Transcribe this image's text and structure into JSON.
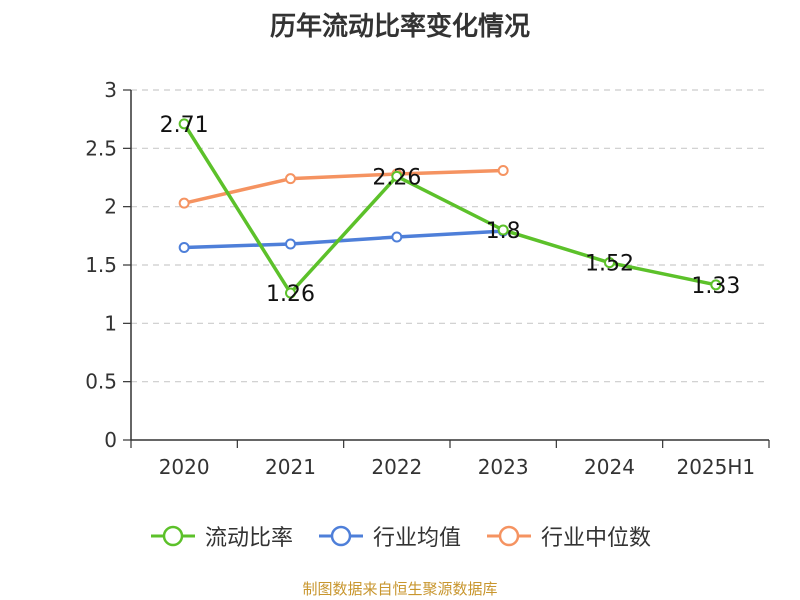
{
  "chart_data": {
    "type": "line",
    "title": "历年流动比率变化情况",
    "categories": [
      "2020",
      "2021",
      "2022",
      "2023",
      "2024",
      "2025H1"
    ],
    "ylim": [
      0,
      3
    ],
    "yticks": [
      "0",
      "0.5",
      "1",
      "1.5",
      "2",
      "2.5",
      "3"
    ],
    "grid": true,
    "legend_position": "bottom",
    "series": [
      {
        "name": "流动比率",
        "color": "#5cc12a",
        "values": [
          2.71,
          1.26,
          2.26,
          1.8,
          1.52,
          1.33
        ],
        "labels": [
          "2.71",
          "1.26",
          "2.26",
          "1.8",
          "1.52",
          "1.33"
        ],
        "show_labels": true
      },
      {
        "name": "行业均值",
        "color": "#4e7fd9",
        "values": [
          1.65,
          1.68,
          1.74,
          1.79,
          null,
          null
        ],
        "show_labels": false
      },
      {
        "name": "行业中位数",
        "color": "#f59361",
        "values": [
          2.03,
          2.24,
          2.28,
          2.31,
          null,
          null
        ],
        "show_labels": false
      }
    ]
  },
  "source": "制图数据来自恒生聚源数据库"
}
